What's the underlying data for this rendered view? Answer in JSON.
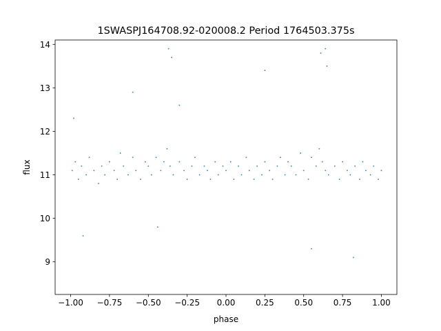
{
  "chart_data": {
    "type": "scatter",
    "title": "1SWASPJ164708.92-020008.2 Period 1764503.375s",
    "xlabel": "phase",
    "ylabel": "flux",
    "xlim": [
      -1.1,
      1.1
    ],
    "ylim": [
      8.25,
      14.1
    ],
    "xticks": [
      -1.0,
      -0.75,
      -0.5,
      -0.25,
      0.0,
      0.25,
      0.5,
      0.75,
      1.0
    ],
    "xtick_labels": [
      "−1.00",
      "−0.75",
      "−0.50",
      "−0.25",
      "0.00",
      "0.25",
      "0.50",
      "0.75",
      "1.00"
    ],
    "yticks": [
      9,
      10,
      11,
      12,
      13,
      14
    ],
    "ytick_labels": [
      "9",
      "10",
      "11",
      "12",
      "13",
      "14"
    ],
    "grid": false,
    "legend": "none",
    "series": [
      {
        "color": "#1f77b4",
        "x": [
          -0.99,
          -0.97,
          -0.95,
          -0.93,
          -0.9,
          -0.88,
          -0.85,
          -0.82,
          -0.8,
          -0.78,
          -0.75,
          -0.72,
          -0.7,
          -0.68,
          -0.66,
          -0.63,
          -0.6,
          -0.58,
          -0.55,
          -0.52,
          -0.5,
          -0.48,
          -0.45,
          -0.42,
          -0.4,
          -0.38,
          -0.36,
          -0.34,
          -0.3,
          -0.27,
          -0.25,
          -0.22,
          -0.2,
          -0.17,
          -0.14,
          -0.12,
          -0.1,
          -0.07,
          -0.05,
          -0.02,
          0.0,
          0.03,
          0.05,
          0.08,
          0.1,
          0.13,
          0.15,
          0.18,
          0.2,
          0.23,
          0.25,
          0.28,
          0.3,
          0.33,
          0.35,
          0.38,
          0.4,
          0.42,
          0.45,
          0.48,
          0.5,
          0.53,
          0.55,
          0.58,
          0.6,
          0.62,
          0.64,
          0.66,
          0.7,
          0.73,
          0.75,
          0.78,
          0.8,
          0.83,
          0.86,
          0.88,
          0.9,
          0.93,
          0.95,
          0.98,
          1.0,
          -0.98,
          -0.6,
          -0.37,
          -0.35,
          0.61,
          0.64,
          0.65,
          -0.44,
          0.55,
          -0.92,
          0.82,
          -0.3,
          0.25
        ],
        "y": [
          11.1,
          11.3,
          10.9,
          11.2,
          11.0,
          11.4,
          11.1,
          10.8,
          11.2,
          11.0,
          11.3,
          11.1,
          10.9,
          11.5,
          11.2,
          11.0,
          11.4,
          11.1,
          10.9,
          11.3,
          11.2,
          11.0,
          11.4,
          11.1,
          11.3,
          11.6,
          11.2,
          11.0,
          11.3,
          11.1,
          10.9,
          11.2,
          11.4,
          11.0,
          11.2,
          11.1,
          10.9,
          11.3,
          11.0,
          11.2,
          11.1,
          11.3,
          10.9,
          11.2,
          11.0,
          11.4,
          11.1,
          10.9,
          11.2,
          11.0,
          11.3,
          11.1,
          10.9,
          11.2,
          11.4,
          11.0,
          11.3,
          11.2,
          11.0,
          11.5,
          11.1,
          10.9,
          11.4,
          11.2,
          11.6,
          11.3,
          11.1,
          11.0,
          11.2,
          10.9,
          11.3,
          11.1,
          11.0,
          11.2,
          10.9,
          11.3,
          11.1,
          11.0,
          11.2,
          10.9,
          11.1,
          12.3,
          12.9,
          13.9,
          13.7,
          13.8,
          13.9,
          13.5,
          9.8,
          9.3,
          9.6,
          9.1,
          12.6,
          13.4
        ]
      }
    ]
  }
}
